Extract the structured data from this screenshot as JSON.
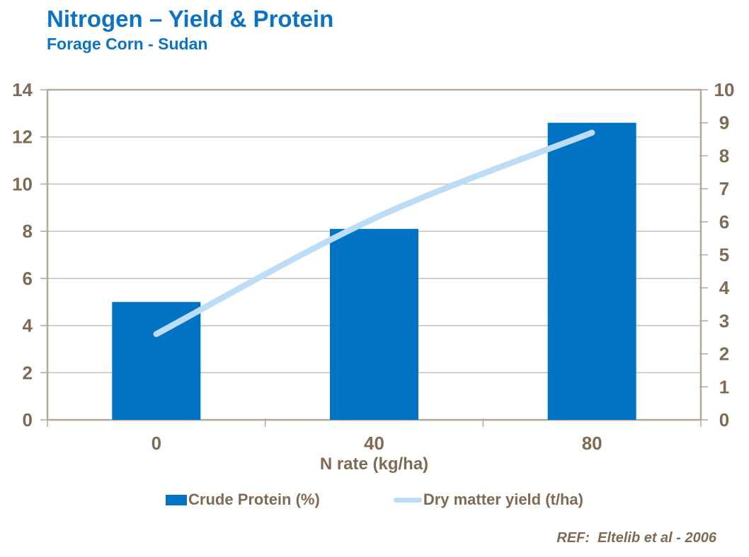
{
  "header": {
    "title": "Nitrogen – Yield & Protein",
    "subtitle": "Forage Corn - Sudan"
  },
  "footer": {
    "ref": "REF:  Eltelib et al - 2006"
  },
  "colors": {
    "title_blue": "#0C73C4",
    "bar_blue": "#0272C2",
    "line_light_blue": "#BDDDF6",
    "text_brown": "#7F6B55",
    "gridline": "#C9C1B6",
    "plot_border": "#B2A89C",
    "background": "#FFFFFF"
  },
  "chart_data": {
    "type": "combo",
    "title": "Nitrogen – Yield & Protein",
    "subtitle": "Forage Corn - Sudan",
    "categories": [
      "0",
      "40",
      "80"
    ],
    "xlabel": "N rate (kg/ha)",
    "series": [
      {
        "name": "Crude Protein (%)",
        "type": "bar",
        "axis": "left",
        "values": [
          5.0,
          8.1,
          12.6
        ],
        "color": "#0272C2"
      },
      {
        "name": "Dry matter yield (t/ha)",
        "type": "line",
        "axis": "right",
        "values": [
          2.6,
          6.1,
          8.7
        ],
        "color": "#BDDDF6"
      }
    ],
    "left_axis": {
      "min": 0,
      "max": 14,
      "ticks": [
        0,
        2,
        4,
        6,
        8,
        10,
        12,
        14
      ]
    },
    "right_axis": {
      "min": 0,
      "max": 10,
      "ticks": [
        0,
        1,
        2,
        3,
        4,
        5,
        6,
        7,
        8,
        9,
        10
      ]
    },
    "grid": "horizontal",
    "legend_position": "bottom"
  }
}
